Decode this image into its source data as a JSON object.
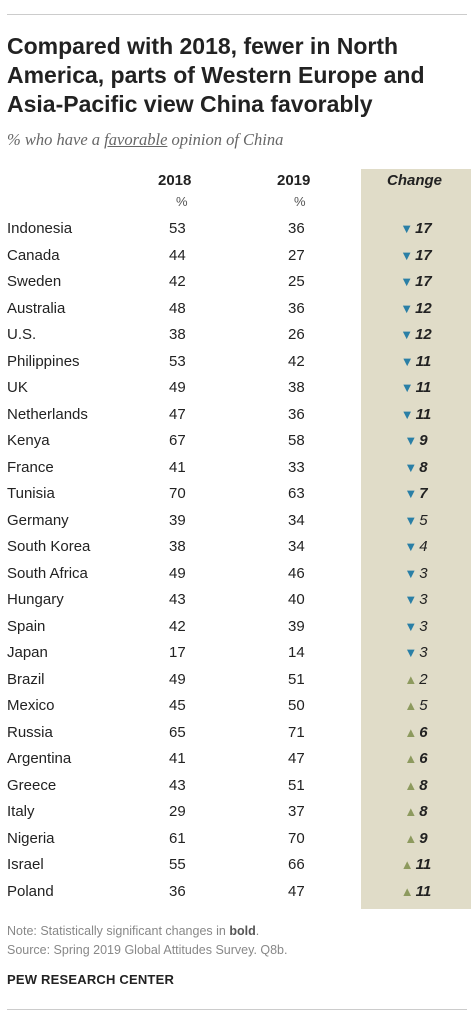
{
  "title": "Compared with 2018, fewer in North America, parts of Western Europe and Asia-Pacific view China favorably",
  "subtitle": {
    "prefix": "% who have a ",
    "underlined": "favorable",
    "suffix": " opinion of China"
  },
  "columns": {
    "y2018": "2018",
    "y2019": "2019",
    "change": "Change",
    "pct": "%"
  },
  "colors": {
    "decrease": "#2a7fa6",
    "increase": "#8d9a5e",
    "change_column_bg": "#e0dcc8"
  },
  "chart_data": {
    "type": "table",
    "title": "Compared with 2018, fewer in North America, parts of Western Europe and Asia-Pacific view China favorably",
    "columns": [
      "2018",
      "2019",
      "Change"
    ],
    "rows": [
      {
        "country": "Indonesia",
        "v2018": 53,
        "v2019": 36,
        "direction": "down",
        "change": "17",
        "significant": true
      },
      {
        "country": "Canada",
        "v2018": 44,
        "v2019": 27,
        "direction": "down",
        "change": "17",
        "significant": true
      },
      {
        "country": "Sweden",
        "v2018": 42,
        "v2019": 25,
        "direction": "down",
        "change": "17",
        "significant": true
      },
      {
        "country": "Australia",
        "v2018": 48,
        "v2019": 36,
        "direction": "down",
        "change": "12",
        "significant": true
      },
      {
        "country": "U.S.",
        "v2018": 38,
        "v2019": 26,
        "direction": "down",
        "change": "12",
        "significant": true
      },
      {
        "country": "Philippines",
        "v2018": 53,
        "v2019": 42,
        "direction": "down",
        "change": "11",
        "significant": true
      },
      {
        "country": "UK",
        "v2018": 49,
        "v2019": 38,
        "direction": "down",
        "change": "11",
        "significant": true
      },
      {
        "country": "Netherlands",
        "v2018": 47,
        "v2019": 36,
        "direction": "down",
        "change": "11",
        "significant": true
      },
      {
        "country": "Kenya",
        "v2018": 67,
        "v2019": 58,
        "direction": "down",
        "change": "9",
        "significant": true
      },
      {
        "country": "France",
        "v2018": 41,
        "v2019": 33,
        "direction": "down",
        "change": "8",
        "significant": true
      },
      {
        "country": "Tunisia",
        "v2018": 70,
        "v2019": 63,
        "direction": "down",
        "change": "7",
        "significant": true
      },
      {
        "country": "Germany",
        "v2018": 39,
        "v2019": 34,
        "direction": "down",
        "change": "5",
        "significant": false
      },
      {
        "country": "South Korea",
        "v2018": 38,
        "v2019": 34,
        "direction": "down",
        "change": "4",
        "significant": false
      },
      {
        "country": "South Africa",
        "v2018": 49,
        "v2019": 46,
        "direction": "down",
        "change": "3",
        "significant": false
      },
      {
        "country": "Hungary",
        "v2018": 43,
        "v2019": 40,
        "direction": "down",
        "change": "3",
        "significant": false
      },
      {
        "country": "Spain",
        "v2018": 42,
        "v2019": 39,
        "direction": "down",
        "change": "3",
        "significant": false
      },
      {
        "country": "Japan",
        "v2018": 17,
        "v2019": 14,
        "direction": "down",
        "change": "3",
        "significant": false
      },
      {
        "country": "Brazil",
        "v2018": 49,
        "v2019": 51,
        "direction": "up",
        "change": "2",
        "significant": false
      },
      {
        "country": "Mexico",
        "v2018": 45,
        "v2019": 50,
        "direction": "up",
        "change": "5",
        "significant": false
      },
      {
        "country": "Russia",
        "v2018": 65,
        "v2019": 71,
        "direction": "up",
        "change": "6",
        "significant": true
      },
      {
        "country": "Argentina",
        "v2018": 41,
        "v2019": 47,
        "direction": "up",
        "change": "6",
        "significant": true
      },
      {
        "country": "Greece",
        "v2018": 43,
        "v2019": 51,
        "direction": "up",
        "change": "8",
        "significant": true
      },
      {
        "country": "Italy",
        "v2018": 29,
        "v2019": 37,
        "direction": "up",
        "change": "8",
        "significant": true
      },
      {
        "country": "Nigeria",
        "v2018": 61,
        "v2019": 70,
        "direction": "up",
        "change": "9",
        "significant": true
      },
      {
        "country": "Israel",
        "v2018": 55,
        "v2019": 66,
        "direction": "up",
        "change": "11",
        "significant": true
      },
      {
        "country": "Poland",
        "v2018": 36,
        "v2019": 47,
        "direction": "up",
        "change": "11",
        "significant": true
      }
    ]
  },
  "note": {
    "prefix": "Note: Statistically significant changes in ",
    "bold": "bold",
    "suffix": "."
  },
  "source": "Source: Spring 2019 Global Attitudes Survey. Q8b.",
  "brand": "PEW RESEARCH CENTER"
}
